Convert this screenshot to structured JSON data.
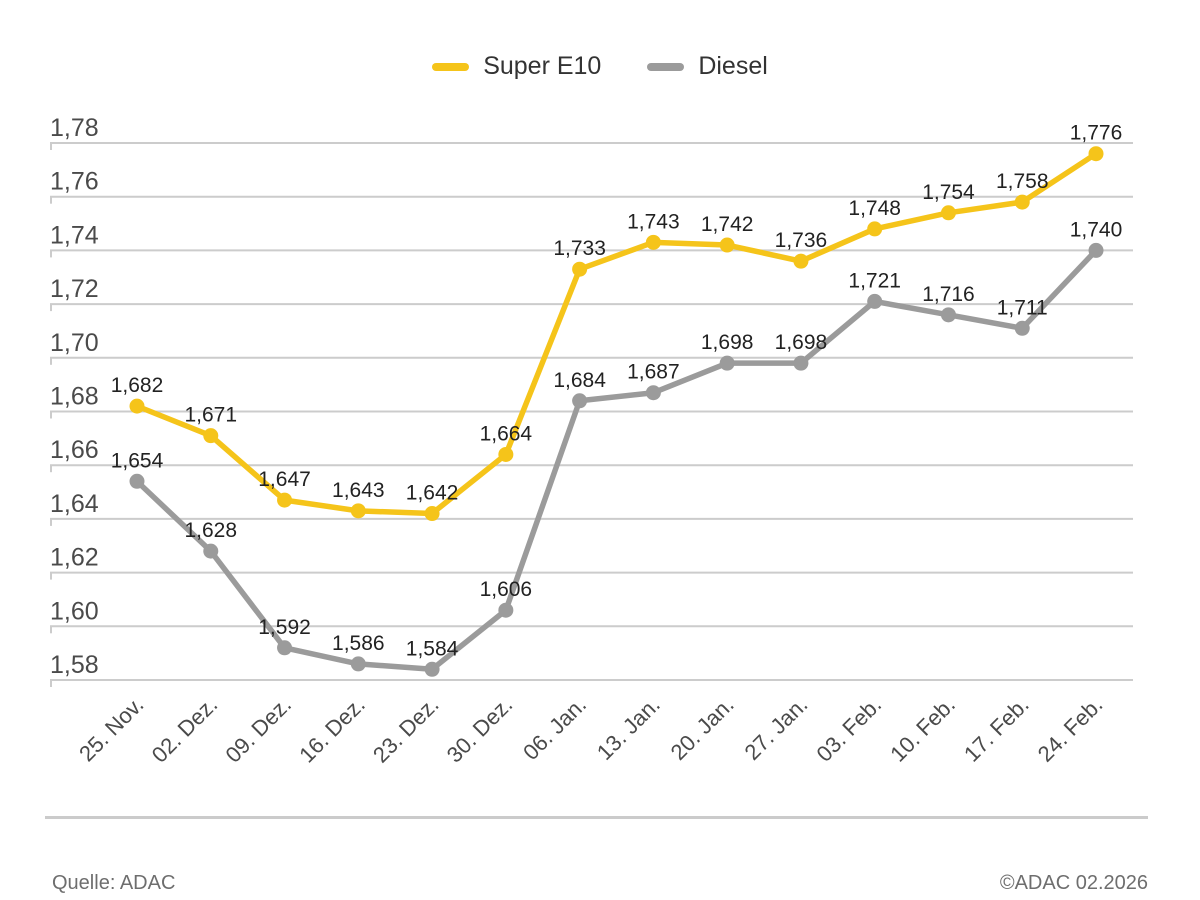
{
  "legend": {
    "items": [
      {
        "label": "Super E10",
        "color": "#F5C41A"
      },
      {
        "label": "Diesel",
        "color": "#9B9B9B"
      }
    ]
  },
  "chart_data": {
    "type": "line",
    "title": "",
    "categories": [
      "25. Nov.",
      "02. Dez.",
      "09. Dez.",
      "16. Dez.",
      "23. Dez.",
      "30. Dez.",
      "06. Jan.",
      "13. Jan.",
      "20. Jan.",
      "27. Jan.",
      "03. Feb.",
      "10. Feb.",
      "17. Feb.",
      "24. Feb."
    ],
    "series": [
      {
        "name": "Diesel",
        "color": "#9B9B9B",
        "values": [
          1.654,
          1.628,
          1.592,
          1.586,
          1.584,
          1.606,
          1.684,
          1.687,
          1.698,
          1.698,
          1.721,
          1.716,
          1.711,
          1.74
        ],
        "labels": [
          "1,654",
          "1,628",
          "1,592",
          "1,586",
          "1,584",
          "1,606",
          "1,684",
          "1,687",
          "1,698",
          "1,698",
          "1,721",
          "1,716",
          "1,711",
          "1,740"
        ]
      },
      {
        "name": "Super E10",
        "color": "#F5C41A",
        "values": [
          1.682,
          1.671,
          1.647,
          1.643,
          1.642,
          1.664,
          1.733,
          1.743,
          1.742,
          1.736,
          1.748,
          1.754,
          1.758,
          1.776
        ],
        "labels": [
          "1,682",
          "1,671",
          "1,647",
          "1,643",
          "1,642",
          "1,664",
          "1,733",
          "1,743",
          "1,742",
          "1,736",
          "1,748",
          "1,754",
          "1,758",
          "1,776"
        ]
      }
    ],
    "ylim": [
      1.58,
      1.78
    ],
    "ytick_step": 0.02,
    "ytick_labels": [
      "1,78",
      "1,76",
      "1,74",
      "1,72",
      "1,70",
      "1,68",
      "1,66",
      "1,64",
      "1,62",
      "1,60",
      "1,58"
    ],
    "grid": true,
    "legend_position": "top",
    "x_label_rotation": -45,
    "xlabel": "",
    "ylabel": ""
  },
  "footer": {
    "source": "Quelle: ADAC",
    "copyright": "©ADAC 02.2026"
  },
  "colors": {
    "grid": "#cccccc",
    "axis_text": "#4a4a4a",
    "value_label": "#222222",
    "footer_text": "#6e6e6e",
    "divider": "#cbcbcb",
    "background": "#ffffff"
  }
}
